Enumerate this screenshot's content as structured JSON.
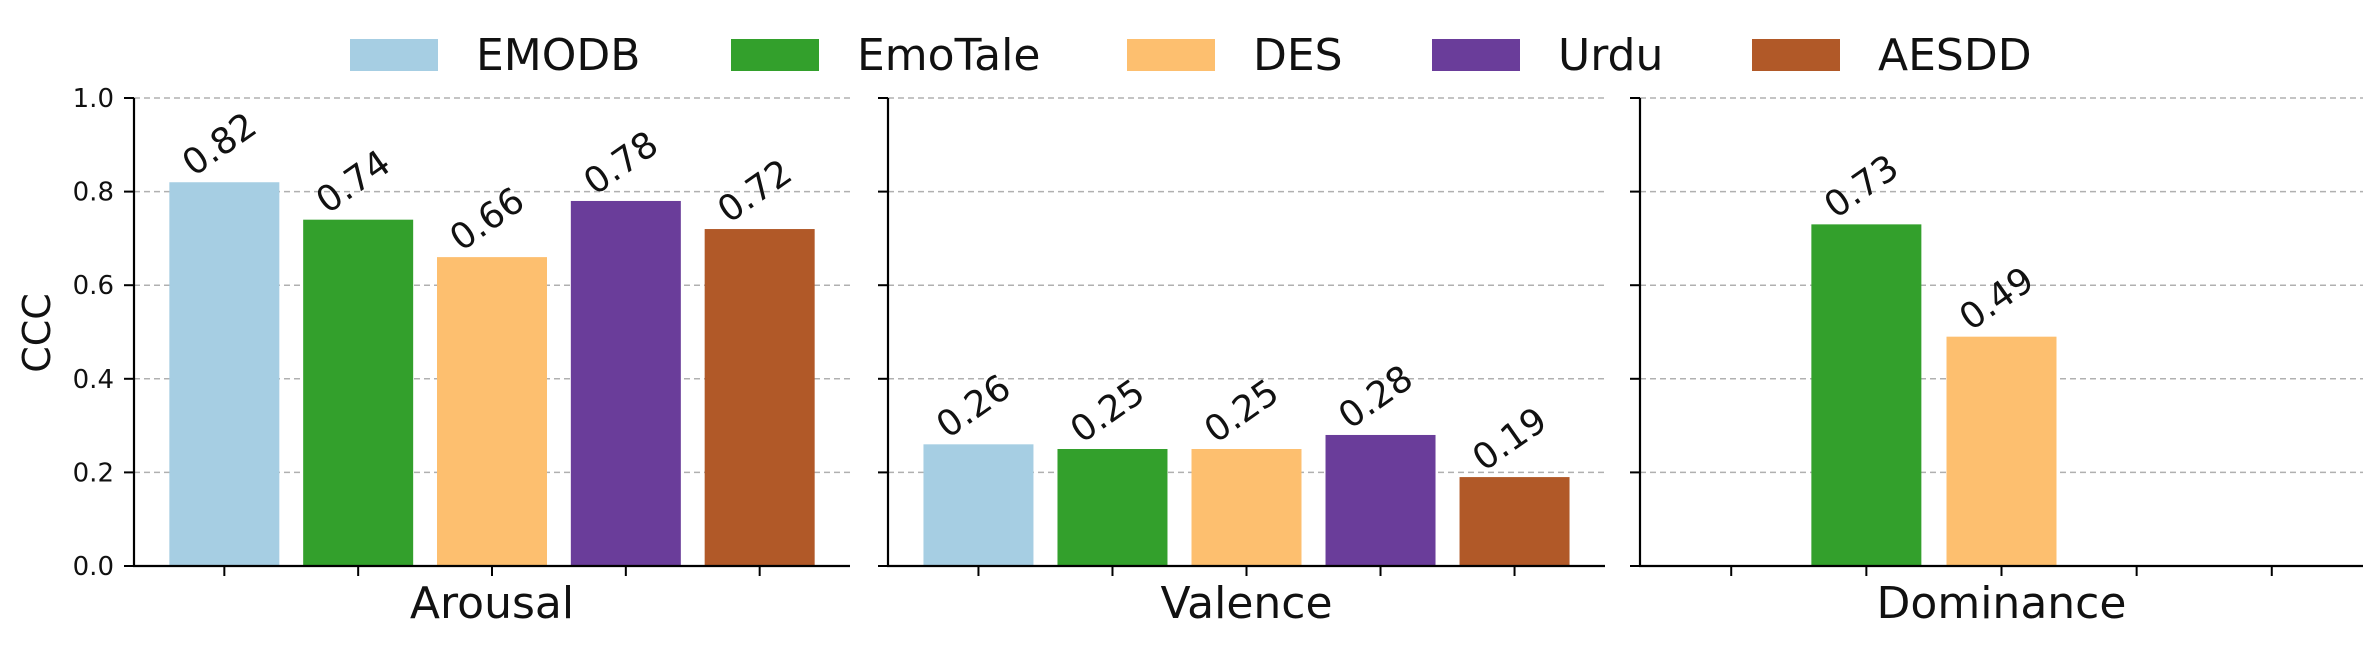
{
  "chart_data": {
    "type": "bar",
    "ylabel": "CCC",
    "ylim": [
      0,
      1.0
    ],
    "yticks": [
      "0.0",
      "0.2",
      "0.4",
      "0.6",
      "0.8",
      "1.0"
    ],
    "grid": "y-dashed",
    "legend_position": "top",
    "series": [
      {
        "name": "EMODB",
        "color": "#a6cee3"
      },
      {
        "name": "EmoTale",
        "color": "#33a02c"
      },
      {
        "name": "DES",
        "color": "#fdbf6f"
      },
      {
        "name": "Urdu",
        "color": "#6a3d9a"
      },
      {
        "name": "AESDD",
        "color": "#b15928"
      }
    ],
    "panels": [
      {
        "name": "Arousal",
        "values": [
          0.82,
          0.74,
          0.66,
          0.78,
          0.72
        ],
        "labels": [
          "0.82",
          "0.74",
          "0.66",
          "0.78",
          "0.72"
        ]
      },
      {
        "name": "Valence",
        "values": [
          0.26,
          0.25,
          0.25,
          0.28,
          0.19
        ],
        "labels": [
          "0.26",
          "0.25",
          "0.25",
          "0.28",
          "0.19"
        ]
      },
      {
        "name": "Dominance",
        "values": [
          null,
          0.73,
          0.49,
          null,
          null
        ],
        "labels": [
          "",
          "0.73",
          "0.49",
          "",
          ""
        ]
      }
    ]
  }
}
